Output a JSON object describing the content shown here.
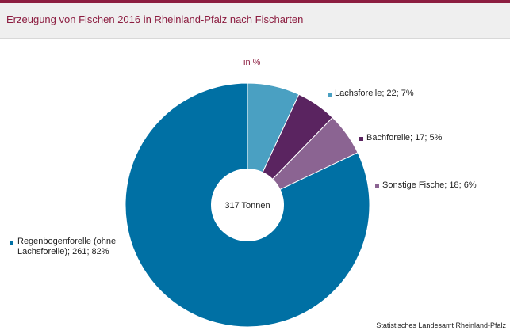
{
  "header": {
    "title": "Erzeugung von Fischen 2016 in Rheinland-Pfalz nach Fischarten"
  },
  "source": "Statistisches Landesamt Rheinland-Pfalz",
  "chart_data": {
    "type": "pie",
    "variant": "donut",
    "unit_label": "in %",
    "center_label": "317 Tonnen",
    "total": 317,
    "total_unit": "Tonnen",
    "slices": [
      {
        "name": "Lachsforelle",
        "label": "Lachsforelle;  22; 7%",
        "value": 22,
        "percent": 7,
        "color": "#4aa0c2"
      },
      {
        "name": "Bachforelle",
        "label": "Bachforelle;  17; 5%",
        "value": 17,
        "percent": 5,
        "color": "#5a2460"
      },
      {
        "name": "Sonstige Fische",
        "label": "Sonstige Fische;  18; 6%",
        "value": 18,
        "percent": 6,
        "color": "#8b6492"
      },
      {
        "name": "Regenbogenforelle (ohne Lachsforelle)",
        "label_lines": [
          "Regenbogenforelle (ohne",
          "Lachsforelle);  261; 82%"
        ],
        "value": 261,
        "percent": 82,
        "color": "#0070a4"
      }
    ],
    "start_direction": "12 o'clock",
    "direction": "clockwise",
    "legend_placement": "labels beside slices"
  }
}
